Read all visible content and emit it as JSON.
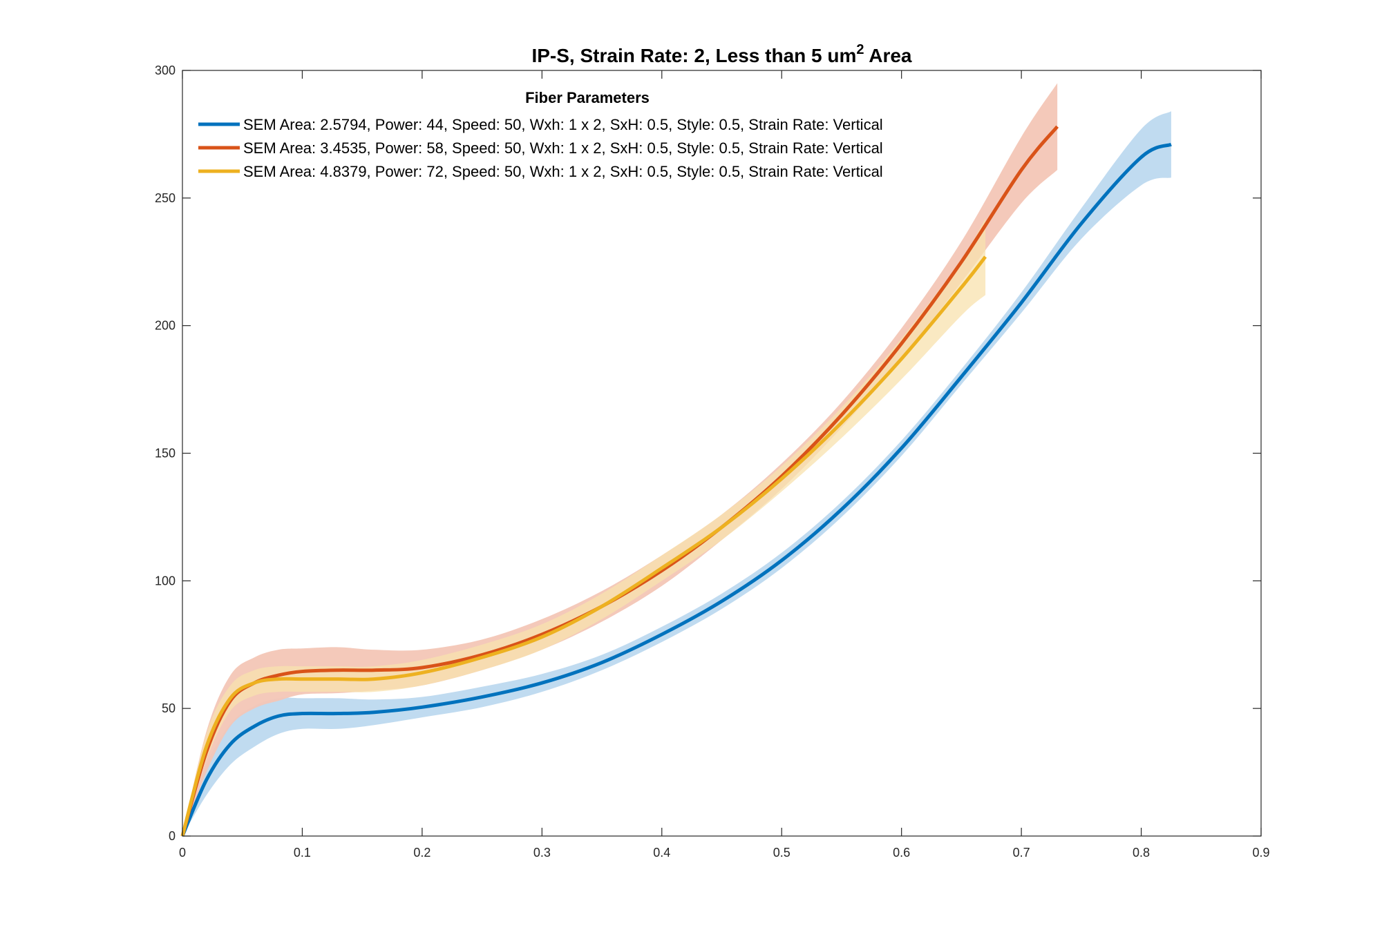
{
  "chart_data": {
    "type": "line",
    "title": "IP-S, Strain Rate: 2, Less than 5 um",
    "title_superscript": "2",
    "title_suffix": " Area",
    "xlabel": "",
    "ylabel": "",
    "xlim": [
      0,
      0.9
    ],
    "ylim": [
      0,
      300
    ],
    "x_ticks": [
      0,
      0.1,
      0.2,
      0.3,
      0.4,
      0.5,
      0.6,
      0.7,
      0.8,
      0.9
    ],
    "x_tick_labels": [
      "0",
      "0.1",
      "0.2",
      "0.3",
      "0.4",
      "0.5",
      "0.6",
      "0.7",
      "0.8",
      "0.9"
    ],
    "y_ticks": [
      0,
      50,
      100,
      150,
      200,
      250,
      300
    ],
    "y_tick_labels": [
      "0",
      "50",
      "100",
      "150",
      "200",
      "250",
      "300"
    ],
    "grid": false,
    "legend_title": "Fiber Parameters",
    "legend_position": "top-left",
    "series": [
      {
        "name": "SEM Area: 2.5794, Power: 44, Speed: 50, Wxh: 1 x 2, SxH: 0.5, Style: 0.5, Strain Rate: Vertical",
        "color": "#0072BD",
        "band_color": "#BDD9EF",
        "x": [
          0,
          0.02,
          0.04,
          0.06,
          0.08,
          0.1,
          0.13,
          0.16,
          0.2,
          0.25,
          0.3,
          0.35,
          0.4,
          0.45,
          0.5,
          0.55,
          0.6,
          0.65,
          0.7,
          0.75,
          0.8,
          0.825
        ],
        "y": [
          0,
          22,
          36,
          43,
          47,
          48,
          48,
          48.5,
          50.5,
          54.5,
          60,
          68,
          79,
          92,
          108,
          128,
          152,
          180,
          209,
          240,
          266,
          271
        ],
        "band": [
          0,
          6,
          8,
          8,
          7,
          6,
          6,
          5,
          4,
          4,
          3.5,
          3,
          3,
          3,
          3,
          3,
          3,
          3,
          4,
          6,
          11,
          13
        ]
      },
      {
        "name": "SEM Area: 3.4535, Power: 58, Speed: 50, Wxh: 1 x 2, SxH: 0.5, Style: 0.5, Strain Rate: Vertical",
        "color": "#D95319",
        "band_color": "#F3C6B6",
        "x": [
          0,
          0.02,
          0.04,
          0.06,
          0.08,
          0.1,
          0.13,
          0.16,
          0.2,
          0.25,
          0.3,
          0.35,
          0.4,
          0.45,
          0.5,
          0.55,
          0.6,
          0.65,
          0.7,
          0.73
        ],
        "y": [
          0,
          33,
          53,
          60,
          63,
          64.5,
          65,
          65,
          66,
          71,
          79,
          90,
          104,
          121,
          141,
          165,
          193,
          225,
          261,
          278
        ],
        "band": [
          0,
          8,
          10,
          10,
          10,
          9,
          9,
          8,
          7,
          6,
          6,
          6,
          6,
          5,
          5,
          5,
          6,
          8,
          13,
          17
        ]
      },
      {
        "name": "SEM Area: 4.8379, Power: 72, Speed: 50, Wxh: 1 x 2, SxH: 0.5, Style: 0.5, Strain Rate: Vertical",
        "color": "#EDB120",
        "band_color": "#F8E2AE",
        "x": [
          0,
          0.02,
          0.04,
          0.06,
          0.08,
          0.1,
          0.13,
          0.16,
          0.2,
          0.25,
          0.3,
          0.35,
          0.4,
          0.45,
          0.5,
          0.55,
          0.6,
          0.65,
          0.67
        ],
        "y": [
          0,
          35,
          54,
          60,
          61.5,
          61.5,
          61.5,
          61.5,
          64,
          70,
          78,
          90,
          105,
          121,
          140,
          162,
          187,
          215,
          227
        ],
        "band": [
          0,
          5,
          5,
          5,
          5,
          5,
          5,
          5,
          5,
          5,
          5,
          5,
          5,
          5,
          5,
          6,
          8,
          11,
          15
        ]
      }
    ]
  }
}
